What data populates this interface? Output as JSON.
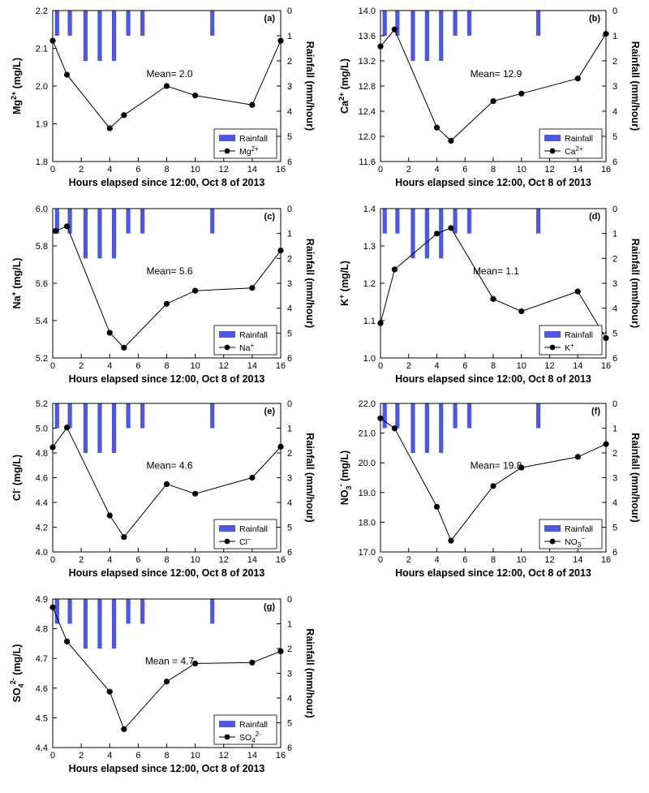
{
  "colors": {
    "rainfall": "#4b57e8",
    "line": "#000000"
  },
  "chart_data": [
    {
      "type": "line",
      "panel": "(a)",
      "ylabel_base": "Mg",
      "ylabel_sup": "2+",
      "ylabel_tail": " (mg/L)",
      "y2label": "Rainfall (mm/hour)",
      "xlabel": "Hours elapsed since 12:00, Oct 8 of 2013",
      "xlim": [
        0,
        16
      ],
      "xticks": [
        "0",
        "2",
        "4",
        "6",
        "8",
        "10",
        "12",
        "14",
        "16"
      ],
      "ylim": [
        1.8,
        2.2
      ],
      "yticks": [
        "1.8",
        "1.9",
        "2.0",
        "2.1",
        "2.2"
      ],
      "y2lim": [
        0,
        6
      ],
      "y2ticks": [
        "0",
        "1",
        "2",
        "3",
        "4",
        "5",
        "6"
      ],
      "series": [
        {
          "name": "Rainfall",
          "kind": "bar",
          "x": [
            0.3,
            1.2,
            2.3,
            3.3,
            4.3,
            5.3,
            6.3,
            11.2
          ],
          "values": [
            1,
            1,
            2,
            2,
            2,
            1,
            1,
            1
          ]
        },
        {
          "name": "Mg2+",
          "legend_base": "Mg",
          "legend_sup": "2+",
          "kind": "line",
          "x": [
            0,
            1,
            4,
            5,
            8,
            10,
            14,
            16
          ],
          "values": [
            2.12,
            2.03,
            1.888,
            1.923,
            2.0,
            1.975,
            1.95,
            2.12
          ]
        }
      ],
      "annotation": "Mean= 2.0"
    },
    {
      "type": "line",
      "panel": "(b)",
      "ylabel_base": "Ca",
      "ylabel_sup": "2+",
      "ylabel_tail": " (mg/L)",
      "y2label": "Rainfall (mm/hour)",
      "xlabel": "Hours elapsed since 12:00, Oct 8 of 2013",
      "xlim": [
        0,
        16
      ],
      "xticks": [
        "0",
        "2",
        "4",
        "6",
        "8",
        "10",
        "12",
        "14",
        "16"
      ],
      "ylim": [
        11.6,
        14.0
      ],
      "yticks": [
        "11.6",
        "12.0",
        "12.4",
        "12.8",
        "13.2",
        "13.6",
        "14.0"
      ],
      "y2lim": [
        0,
        6
      ],
      "y2ticks": [
        "0",
        "1",
        "2",
        "3",
        "4",
        "5",
        "6"
      ],
      "series": [
        {
          "name": "Rainfall",
          "kind": "bar",
          "x": [
            0.3,
            1.2,
            2.3,
            3.3,
            4.3,
            5.3,
            6.3,
            11.2
          ],
          "values": [
            1,
            1,
            2,
            2,
            2,
            1,
            1,
            1
          ]
        },
        {
          "name": "Ca2+",
          "legend_base": "Ca",
          "legend_sup": "2+",
          "kind": "line",
          "x": [
            0,
            1,
            4,
            5,
            8,
            10,
            14,
            16
          ],
          "values": [
            13.43,
            13.7,
            12.14,
            11.93,
            12.56,
            12.68,
            12.92,
            13.63
          ]
        }
      ],
      "annotation": "Mean= 12.9"
    },
    {
      "type": "line",
      "panel": "(c)",
      "ylabel_base": "Na",
      "ylabel_sup": "+",
      "ylabel_tail": " (mg/L)",
      "y2label": "Rainfall (mm/hour)",
      "xlabel": "Hours elapsed since 12:00, Oct 8 of 2013",
      "xlim": [
        0,
        16
      ],
      "xticks": [
        "0",
        "2",
        "4",
        "6",
        "8",
        "10",
        "12",
        "14",
        "16"
      ],
      "ylim": [
        5.2,
        6.0
      ],
      "yticks": [
        "5.2",
        "5.4",
        "5.6",
        "5.8",
        "6.0"
      ],
      "y2lim": [
        0,
        6
      ],
      "y2ticks": [
        "0",
        "1",
        "2",
        "3",
        "4",
        "5",
        "6"
      ],
      "series": [
        {
          "name": "Rainfall",
          "kind": "bar",
          "x": [
            0.3,
            1.2,
            2.3,
            3.3,
            4.3,
            5.3,
            6.3,
            11.2
          ],
          "values": [
            1,
            1,
            2,
            2,
            2,
            1,
            1,
            1
          ]
        },
        {
          "name": "Na+",
          "legend_base": "Na",
          "legend_sup": "+",
          "kind": "line",
          "x": [
            0.2,
            1,
            4,
            5,
            8,
            10,
            14,
            16
          ],
          "values": [
            5.88,
            5.905,
            5.335,
            5.255,
            5.49,
            5.56,
            5.575,
            5.775
          ]
        }
      ],
      "annotation": "Mean= 5.6"
    },
    {
      "type": "line",
      "panel": "(d)",
      "ylabel_base": "K",
      "ylabel_sup": "+",
      "ylabel_tail": " (mg/L)",
      "y2label": "Rainfall (mm/hour)",
      "xlabel": "Hours elapsed since 12:00, Oct 8 of 2013",
      "xlim": [
        0,
        16
      ],
      "xticks": [
        "0",
        "2",
        "4",
        "6",
        "8",
        "10",
        "12",
        "14",
        "16"
      ],
      "ylim": [
        1.0,
        1.4
      ],
      "yticks": [
        "1.0",
        "1.1",
        "1.2",
        "1.3",
        "1.4"
      ],
      "y2lim": [
        0,
        6
      ],
      "y2ticks": [
        "0",
        "1",
        "2",
        "3",
        "4",
        "5",
        "6"
      ],
      "series": [
        {
          "name": "Rainfall",
          "kind": "bar",
          "x": [
            0.3,
            1.2,
            2.3,
            3.3,
            4.3,
            5.3,
            6.3,
            11.2
          ],
          "values": [
            1,
            1,
            2,
            2,
            2,
            1,
            1,
            1
          ]
        },
        {
          "name": "K+",
          "legend_base": "K",
          "legend_sup": "+",
          "kind": "line",
          "x": [
            0,
            1,
            4,
            5,
            8,
            10,
            14,
            16
          ],
          "values": [
            1.093,
            1.237,
            1.333,
            1.348,
            1.158,
            1.125,
            1.178,
            1.053
          ]
        }
      ],
      "annotation": "Mean= 1.1"
    },
    {
      "type": "line",
      "panel": "(e)",
      "ylabel_base": "Cl",
      "ylabel_sup": "-",
      "ylabel_tail": " (mg/L)",
      "y2label": "Rainfall (mm/hour)",
      "xlabel": "Hours elapsed since 12:00, Oct 8 of 2013",
      "xlim": [
        0,
        16
      ],
      "xticks": [
        "0",
        "2",
        "4",
        "6",
        "8",
        "10",
        "12",
        "14",
        "16"
      ],
      "ylim": [
        4.0,
        5.2
      ],
      "yticks": [
        "4.0",
        "4.2",
        "4.4",
        "4.6",
        "4.8",
        "5.0",
        "5.2"
      ],
      "y2lim": [
        0,
        6
      ],
      "y2ticks": [
        "0",
        "1",
        "2",
        "3",
        "4",
        "5",
        "6"
      ],
      "series": [
        {
          "name": "Rainfall",
          "kind": "bar",
          "x": [
            0.3,
            1.2,
            2.3,
            3.3,
            4.3,
            5.3,
            6.3,
            11.2
          ],
          "values": [
            1,
            1,
            2,
            2,
            2,
            1,
            1,
            1
          ]
        },
        {
          "name": "Cl-",
          "legend_base": "Cl",
          "legend_sup": "−",
          "kind": "line",
          "x": [
            0,
            1,
            4,
            5,
            8,
            10,
            14,
            16
          ],
          "values": [
            4.845,
            5.005,
            4.295,
            4.12,
            4.548,
            4.47,
            4.6,
            4.85
          ]
        }
      ],
      "annotation": "Mean= 4.6"
    },
    {
      "type": "line",
      "panel": "(f)",
      "ylabel_base": "NO",
      "ylabel_sub": "3",
      "ylabel_sup": "-",
      "ylabel_tail": " (mg/L)",
      "y2label": "Rainfall (mm/hour)",
      "xlabel": "Hours elapsed since 12:00, Oct 8 of 2013",
      "xlim": [
        0,
        16
      ],
      "xticks": [
        "0",
        "2",
        "4",
        "6",
        "8",
        "10",
        "12",
        "14",
        "16"
      ],
      "ylim": [
        17.0,
        22.0
      ],
      "yticks": [
        "17.0",
        "18.0",
        "19.0",
        "20.0",
        "21.0",
        "22.0"
      ],
      "y2lim": [
        0,
        6
      ],
      "y2ticks": [
        "0",
        "1",
        "2",
        "3",
        "4",
        "5",
        "6"
      ],
      "series": [
        {
          "name": "Rainfall",
          "kind": "bar",
          "x": [
            0.3,
            1.2,
            2.3,
            3.3,
            4.3,
            5.3,
            6.3,
            11.2
          ],
          "values": [
            1,
            1,
            2,
            2,
            2,
            1,
            1,
            1
          ]
        },
        {
          "name": "NO3-",
          "legend_base": "NO",
          "legend_sub": "3",
          "legend_sup": "−",
          "kind": "line",
          "x": [
            0,
            1,
            4,
            5,
            8,
            10,
            14,
            16
          ],
          "values": [
            21.5,
            21.16,
            18.52,
            17.38,
            19.22,
            19.84,
            20.2,
            20.63
          ]
        }
      ],
      "annotation": "Mean= 19.8"
    },
    {
      "type": "line",
      "panel": "(g)",
      "ylabel_base": "SO",
      "ylabel_sub": "4",
      "ylabel_sup": "2-",
      "ylabel_tail": " (mg/L)",
      "y2label": "Rainfall (mm/hour)",
      "xlabel": "Hours elapsed since 12:00, Oct 8 of 2013",
      "xlim": [
        0,
        16
      ],
      "xticks": [
        "0",
        "2",
        "4",
        "6",
        "8",
        "10",
        "12",
        "14",
        "16"
      ],
      "ylim": [
        4.4,
        4.9
      ],
      "yticks": [
        "4.4",
        "4.5",
        "4.6",
        "4.7",
        "4.8",
        "4.9"
      ],
      "y2lim": [
        0,
        6
      ],
      "y2ticks": [
        "0",
        "1",
        "2",
        "3",
        "4",
        "5",
        "6"
      ],
      "series": [
        {
          "name": "Rainfall",
          "kind": "bar",
          "x": [
            0.3,
            1.2,
            2.3,
            3.3,
            4.3,
            5.3,
            6.3,
            11.2
          ],
          "values": [
            1,
            1,
            2,
            2,
            2,
            1,
            1,
            1
          ]
        },
        {
          "name": "SO42-",
          "legend_base": "SO",
          "legend_sub": "4",
          "legend_sup": "2-",
          "kind": "line",
          "x": [
            0,
            1,
            4,
            5,
            8,
            10,
            14,
            16
          ],
          "values": [
            4.872,
            4.757,
            4.588,
            4.462,
            4.622,
            4.683,
            4.686,
            4.724
          ]
        }
      ],
      "annotation": "Mean = 4.7"
    }
  ]
}
